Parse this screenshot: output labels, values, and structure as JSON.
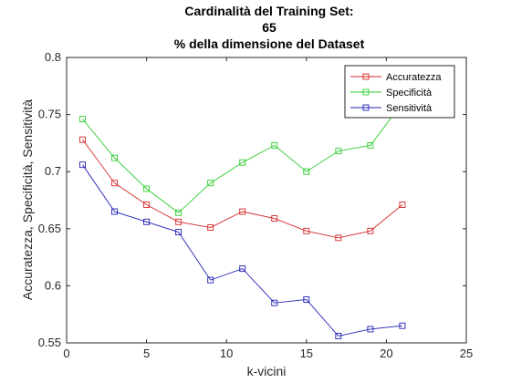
{
  "chart_data": {
    "type": "line",
    "title": [
      "Cardinalità del Training Set:",
      "65",
      "% della dimensione del Dataset"
    ],
    "xlabel": "k-vicini",
    "ylabel": "Accuratezza, Specificità, Sensitività",
    "xlim": [
      0,
      25
    ],
    "ylim": [
      0.55,
      0.8
    ],
    "xticks": [
      0,
      5,
      10,
      15,
      20,
      25
    ],
    "yticks": [
      0.55,
      0.6,
      0.65,
      0.7,
      0.75,
      0.8
    ],
    "ytick_labels": [
      "0.55",
      "0.6",
      "0.65",
      "0.7",
      "0.75",
      "0.8"
    ],
    "grid": false,
    "legend_position": "top-right",
    "x": [
      1,
      3,
      5,
      7,
      9,
      11,
      13,
      15,
      17,
      19,
      21
    ],
    "series": [
      {
        "name": "Accuratezza",
        "color": "#d62728",
        "values": [
          0.728,
          0.69,
          0.671,
          0.656,
          0.651,
          0.665,
          0.659,
          0.648,
          0.642,
          0.648,
          0.671
        ]
      },
      {
        "name": "Specificità",
        "color": "#2ecc2e",
        "values": [
          0.746,
          0.712,
          0.685,
          0.664,
          0.69,
          0.708,
          0.723,
          0.7,
          0.718,
          0.723,
          0.76
        ]
      },
      {
        "name": "Sensitività",
        "color": "#1f1fb4",
        "values": [
          0.706,
          0.665,
          0.656,
          0.647,
          0.605,
          0.615,
          0.585,
          0.588,
          0.556,
          0.562,
          0.565
        ]
      }
    ]
  }
}
